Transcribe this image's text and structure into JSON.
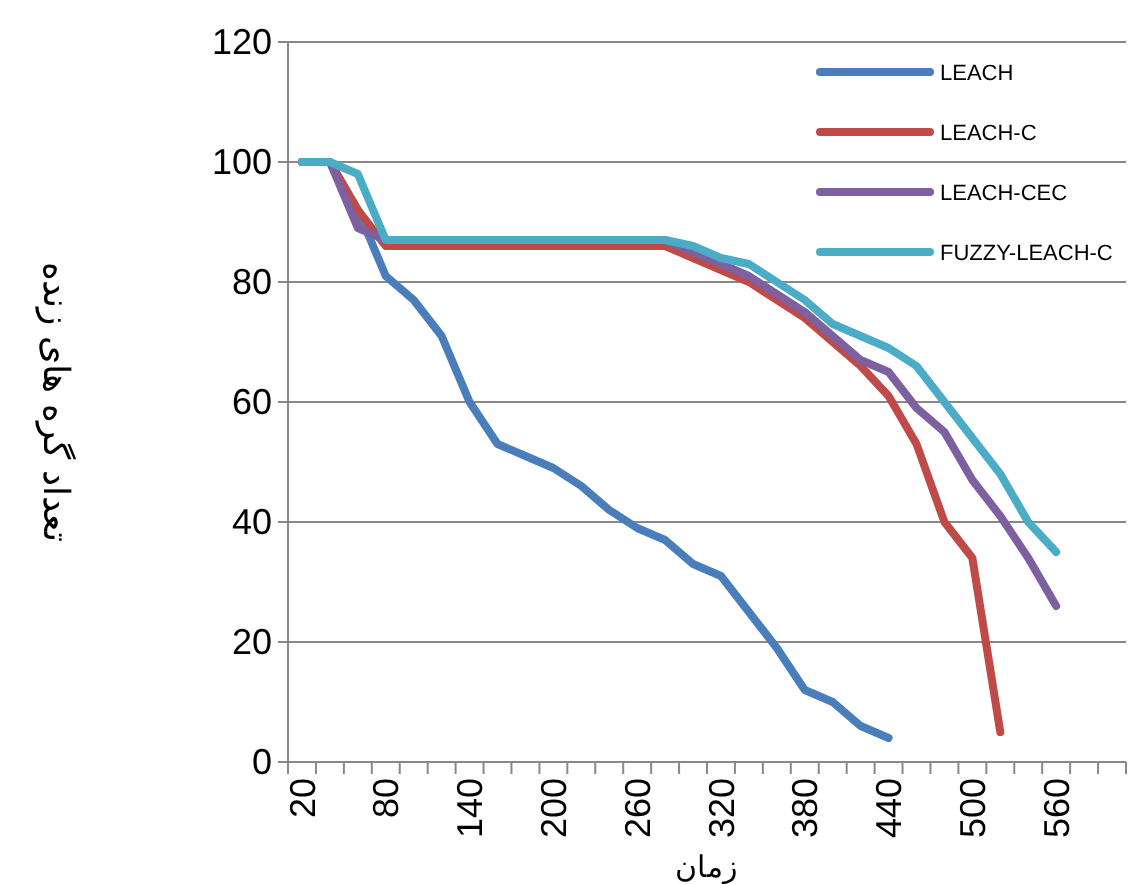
{
  "chart_data": {
    "type": "line",
    "xlabel": "زمان",
    "ylabel": "تعداد گره های زنده",
    "categories": [
      "20",
      null,
      null,
      "80",
      null,
      null,
      "140",
      null,
      null,
      "200",
      null,
      null,
      "260",
      null,
      null,
      "320",
      null,
      null,
      "380",
      null,
      null,
      "440",
      null,
      null,
      "500",
      null,
      null,
      "560",
      null,
      null
    ],
    "series": [
      {
        "name": "LEACH",
        "color": "#4a7ebb",
        "values": [
          100,
          100,
          92,
          81,
          77,
          71,
          60,
          53,
          51,
          49,
          46,
          42,
          39,
          37,
          33,
          31,
          25,
          19,
          12,
          10,
          6,
          4,
          null,
          null,
          null,
          null,
          null,
          null,
          null,
          null
        ]
      },
      {
        "name": "LEACH-C",
        "color": "#be4b48",
        "values": [
          100,
          100,
          92,
          86,
          86,
          86,
          86,
          86,
          86,
          86,
          86,
          86,
          86,
          86,
          84,
          82,
          80,
          77,
          74,
          70,
          66,
          61,
          53,
          40,
          34,
          5,
          null,
          null,
          null,
          null
        ]
      },
      {
        "name": "LEACH-CEC",
        "color": "#7d60a0",
        "values": [
          100,
          100,
          89,
          87,
          87,
          87,
          87,
          87,
          87,
          87,
          87,
          87,
          87,
          87,
          85,
          83,
          81,
          78,
          75,
          71,
          67,
          65,
          59,
          55,
          47,
          41,
          34,
          26,
          null,
          null
        ]
      },
      {
        "name": "FUZZY-LEACH-C",
        "color": "#4bacc6",
        "values": [
          100,
          100,
          98,
          87,
          87,
          87,
          87,
          87,
          87,
          87,
          87,
          87,
          87,
          87,
          86,
          84,
          83,
          80,
          77,
          73,
          71,
          69,
          66,
          60,
          54,
          48,
          40,
          35,
          null,
          null
        ]
      }
    ],
    "ylim": [
      0,
      120
    ],
    "yticks": [
      0,
      20,
      40,
      60,
      80,
      100,
      120
    ],
    "grid": "y",
    "legend": "top right",
    "marker": "none",
    "line_style": "solid"
  }
}
